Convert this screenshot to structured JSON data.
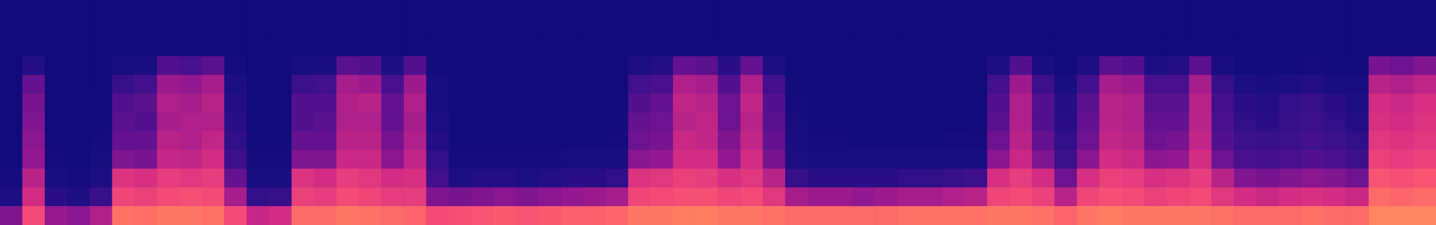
{
  "chart_data": {
    "type": "heatmap",
    "tick_labels": false,
    "zlim": [
      0,
      100
    ],
    "cells": [
      [
        4,
        4,
        4,
        4,
        4,
        5,
        5,
        5,
        6,
        8,
        14,
        40
      ],
      [
        4,
        4,
        4,
        16,
        34,
        38,
        40,
        42,
        44,
        52,
        58,
        72
      ],
      [
        4,
        4,
        4,
        4,
        5,
        5,
        5,
        6,
        8,
        10,
        18,
        45
      ],
      [
        4,
        4,
        4,
        4,
        4,
        5,
        5,
        5,
        6,
        8,
        14,
        42
      ],
      [
        4,
        4,
        4,
        4,
        5,
        6,
        6,
        8,
        10,
        14,
        22,
        50
      ],
      [
        4,
        4,
        4,
        10,
        22,
        30,
        32,
        34,
        40,
        62,
        70,
        86
      ],
      [
        4,
        4,
        4,
        12,
        26,
        32,
        30,
        34,
        38,
        60,
        68,
        85
      ],
      [
        4,
        4,
        5,
        30,
        46,
        50,
        48,
        52,
        55,
        66,
        72,
        88
      ],
      [
        4,
        4,
        5,
        28,
        44,
        48,
        50,
        50,
        54,
        64,
        74,
        88
      ],
      [
        4,
        4,
        5,
        32,
        48,
        52,
        50,
        54,
        58,
        66,
        72,
        86
      ],
      [
        4,
        4,
        4,
        8,
        14,
        16,
        18,
        20,
        24,
        34,
        48,
        72
      ],
      [
        4,
        4,
        4,
        4,
        5,
        5,
        5,
        6,
        8,
        12,
        20,
        55
      ],
      [
        4,
        4,
        4,
        4,
        5,
        5,
        5,
        6,
        8,
        12,
        22,
        58
      ],
      [
        4,
        4,
        4,
        10,
        24,
        30,
        30,
        34,
        40,
        62,
        68,
        84
      ],
      [
        4,
        4,
        4,
        12,
        26,
        30,
        32,
        34,
        40,
        58,
        66,
        84
      ],
      [
        4,
        4,
        5,
        32,
        48,
        50,
        50,
        52,
        56,
        66,
        72,
        88
      ],
      [
        4,
        4,
        5,
        30,
        46,
        52,
        50,
        52,
        56,
        64,
        70,
        86
      ],
      [
        4,
        4,
        4,
        14,
        28,
        34,
        34,
        38,
        42,
        58,
        66,
        84
      ],
      [
        4,
        4,
        5,
        30,
        46,
        50,
        48,
        50,
        54,
        60,
        66,
        82
      ],
      [
        4,
        4,
        4,
        6,
        10,
        12,
        14,
        16,
        20,
        26,
        40,
        72
      ],
      [
        4,
        4,
        4,
        4,
        5,
        5,
        5,
        6,
        8,
        14,
        38,
        74
      ],
      [
        4,
        4,
        4,
        4,
        5,
        5,
        5,
        6,
        8,
        16,
        40,
        76
      ],
      [
        4,
        4,
        4,
        4,
        5,
        5,
        5,
        6,
        8,
        16,
        42,
        78
      ],
      [
        4,
        4,
        4,
        4,
        5,
        5,
        5,
        6,
        8,
        14,
        40,
        76
      ],
      [
        4,
        4,
        4,
        4,
        5,
        5,
        5,
        6,
        8,
        16,
        42,
        78
      ],
      [
        4,
        4,
        4,
        4,
        5,
        5,
        5,
        6,
        10,
        18,
        44,
        80
      ],
      [
        4,
        4,
        4,
        4,
        5,
        5,
        5,
        6,
        10,
        18,
        46,
        80
      ],
      [
        4,
        4,
        4,
        4,
        5,
        5,
        6,
        8,
        12,
        20,
        48,
        82
      ],
      [
        4,
        4,
        4,
        14,
        26,
        30,
        34,
        36,
        42,
        62,
        70,
        88
      ],
      [
        4,
        4,
        4,
        16,
        28,
        34,
        36,
        38,
        44,
        64,
        72,
        88
      ],
      [
        4,
        4,
        5,
        34,
        50,
        54,
        52,
        56,
        58,
        68,
        74,
        90
      ],
      [
        4,
        4,
        5,
        32,
        48,
        52,
        54,
        54,
        58,
        66,
        74,
        90
      ],
      [
        4,
        4,
        4,
        18,
        30,
        36,
        36,
        40,
        44,
        60,
        70,
        88
      ],
      [
        4,
        4,
        5,
        34,
        50,
        54,
        52,
        54,
        58,
        64,
        72,
        88
      ],
      [
        4,
        4,
        4,
        14,
        26,
        30,
        32,
        34,
        38,
        52,
        64,
        86
      ],
      [
        4,
        4,
        4,
        4,
        6,
        8,
        10,
        12,
        14,
        22,
        48,
        84
      ],
      [
        4,
        4,
        4,
        4,
        5,
        5,
        6,
        8,
        10,
        18,
        46,
        84
      ],
      [
        4,
        4,
        4,
        4,
        5,
        5,
        6,
        8,
        10,
        18,
        46,
        84
      ],
      [
        4,
        4,
        4,
        4,
        5,
        5,
        5,
        6,
        10,
        18,
        44,
        84
      ],
      [
        4,
        4,
        4,
        4,
        5,
        5,
        5,
        6,
        10,
        18,
        46,
        84
      ],
      [
        4,
        4,
        4,
        4,
        5,
        5,
        5,
        6,
        10,
        20,
        48,
        86
      ],
      [
        4,
        4,
        4,
        4,
        5,
        5,
        5,
        6,
        10,
        20,
        48,
        86
      ],
      [
        4,
        4,
        4,
        4,
        5,
        5,
        5,
        8,
        12,
        22,
        50,
        86
      ],
      [
        4,
        4,
        4,
        4,
        5,
        5,
        6,
        8,
        12,
        24,
        52,
        86
      ],
      [
        4,
        4,
        4,
        14,
        26,
        30,
        32,
        36,
        42,
        60,
        70,
        88
      ],
      [
        4,
        4,
        5,
        30,
        46,
        50,
        50,
        52,
        56,
        66,
        72,
        88
      ],
      [
        4,
        4,
        4,
        12,
        24,
        30,
        30,
        34,
        40,
        58,
        68,
        86
      ],
      [
        4,
        4,
        4,
        6,
        12,
        16,
        18,
        20,
        24,
        36,
        52,
        82
      ],
      [
        4,
        4,
        4,
        14,
        26,
        32,
        34,
        36,
        42,
        60,
        70,
        88
      ],
      [
        4,
        4,
        5,
        32,
        48,
        52,
        52,
        54,
        58,
        68,
        74,
        90
      ],
      [
        4,
        4,
        5,
        30,
        46,
        50,
        50,
        52,
        56,
        66,
        72,
        88
      ],
      [
        4,
        4,
        4,
        14,
        28,
        32,
        34,
        36,
        42,
        60,
        68,
        88
      ],
      [
        4,
        4,
        4,
        16,
        28,
        32,
        34,
        38,
        44,
        62,
        70,
        88
      ],
      [
        4,
        4,
        5,
        32,
        48,
        52,
        52,
        54,
        58,
        66,
        72,
        88
      ],
      [
        4,
        4,
        4,
        12,
        22,
        26,
        28,
        30,
        36,
        52,
        64,
        86
      ],
      [
        4,
        4,
        4,
        6,
        14,
        18,
        20,
        24,
        28,
        40,
        58,
        84
      ],
      [
        4,
        4,
        4,
        6,
        12,
        16,
        18,
        22,
        26,
        38,
        56,
        84
      ],
      [
        4,
        4,
        4,
        6,
        14,
        20,
        22,
        24,
        28,
        40,
        58,
        84
      ],
      [
        4,
        4,
        4,
        8,
        16,
        22,
        24,
        26,
        30,
        42,
        60,
        86
      ],
      [
        4,
        4,
        4,
        6,
        12,
        18,
        20,
        24,
        28,
        40,
        58,
        84
      ],
      [
        4,
        4,
        4,
        6,
        10,
        14,
        16,
        20,
        24,
        36,
        56,
        84
      ],
      [
        4,
        4,
        6,
        38,
        52,
        58,
        60,
        64,
        68,
        76,
        84,
        92
      ],
      [
        4,
        4,
        6,
        36,
        50,
        56,
        58,
        62,
        66,
        74,
        82,
        92
      ],
      [
        4,
        4,
        6,
        40,
        54,
        60,
        62,
        64,
        68,
        76,
        84,
        92
      ]
    ]
  }
}
